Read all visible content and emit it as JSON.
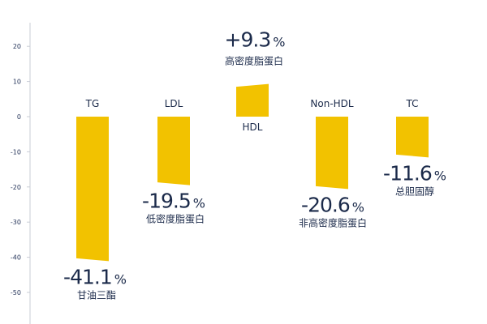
{
  "chart_data": {
    "type": "bar",
    "title": "",
    "xlabel": "",
    "ylabel": "",
    "ylim": [
      -57,
      27
    ],
    "yticks": [
      20,
      10,
      0,
      -10,
      -20,
      -30,
      -40,
      -50
    ],
    "grid": false,
    "bar_color": "#f2c200",
    "categories": [
      {
        "name": "TG",
        "value": -41.1,
        "value_label": "-41.1",
        "unit": "%",
        "desc": "甘油三酯"
      },
      {
        "name": "LDL",
        "value": -19.5,
        "value_label": "-19.5",
        "unit": "%",
        "desc": "低密度脂蛋白"
      },
      {
        "name": "HDL",
        "value": 9.3,
        "value_label": "+9.3",
        "unit": "%",
        "desc": "高密度脂蛋白"
      },
      {
        "name": "Non-HDL",
        "value": -20.6,
        "value_label": "-20.6",
        "unit": "%",
        "desc": "非高密度脂蛋白"
      },
      {
        "name": "TC",
        "value": -11.6,
        "value_label": "-11.6",
        "unit": "%",
        "desc": "总胆固醇"
      }
    ]
  }
}
